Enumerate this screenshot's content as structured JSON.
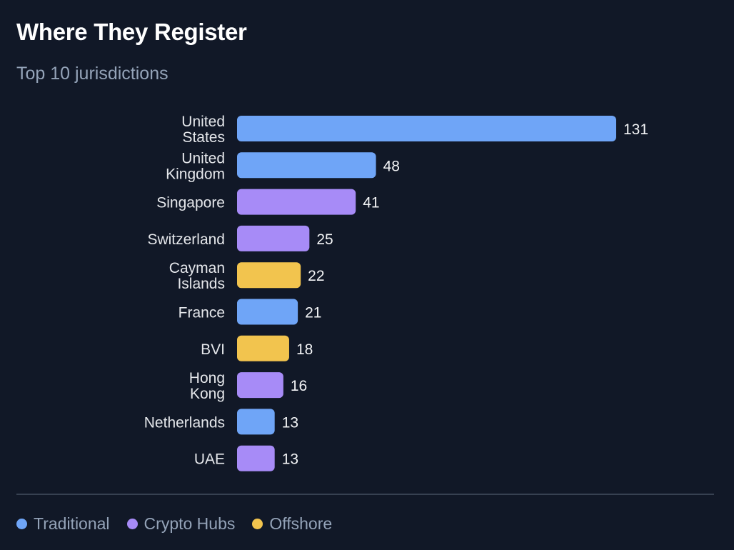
{
  "chart_data": {
    "type": "bar",
    "orientation": "horizontal",
    "title": "Where They Register",
    "subtitle": "Top 10 jurisdictions",
    "categories": [
      [
        "United",
        "States"
      ],
      [
        "United",
        "Kingdom"
      ],
      [
        "Singapore"
      ],
      [
        "Switzerland"
      ],
      [
        "Cayman",
        "Islands"
      ],
      [
        "France"
      ],
      [
        "BVI"
      ],
      [
        "Hong",
        "Kong"
      ],
      [
        "Netherlands"
      ],
      [
        "UAE"
      ]
    ],
    "values": [
      131,
      48,
      41,
      25,
      22,
      21,
      18,
      16,
      13,
      13
    ],
    "groups": [
      "traditional",
      "traditional",
      "crypto",
      "crypto",
      "offshore",
      "traditional",
      "offshore",
      "crypto",
      "traditional",
      "crypto"
    ],
    "xlim": [
      0,
      131
    ],
    "grid": false,
    "legend": [
      {
        "key": "traditional",
        "label": "Traditional",
        "color": "#6fa5f7"
      },
      {
        "key": "crypto",
        "label": "Crypto Hubs",
        "color": "#a78bf7"
      },
      {
        "key": "offshore",
        "label": "Offshore",
        "color": "#f2c44e"
      }
    ]
  },
  "colors": {
    "background": "#111827",
    "category_label": "#e5e7eb",
    "value_label": "#f3f4f6",
    "divider": "#374151"
  }
}
